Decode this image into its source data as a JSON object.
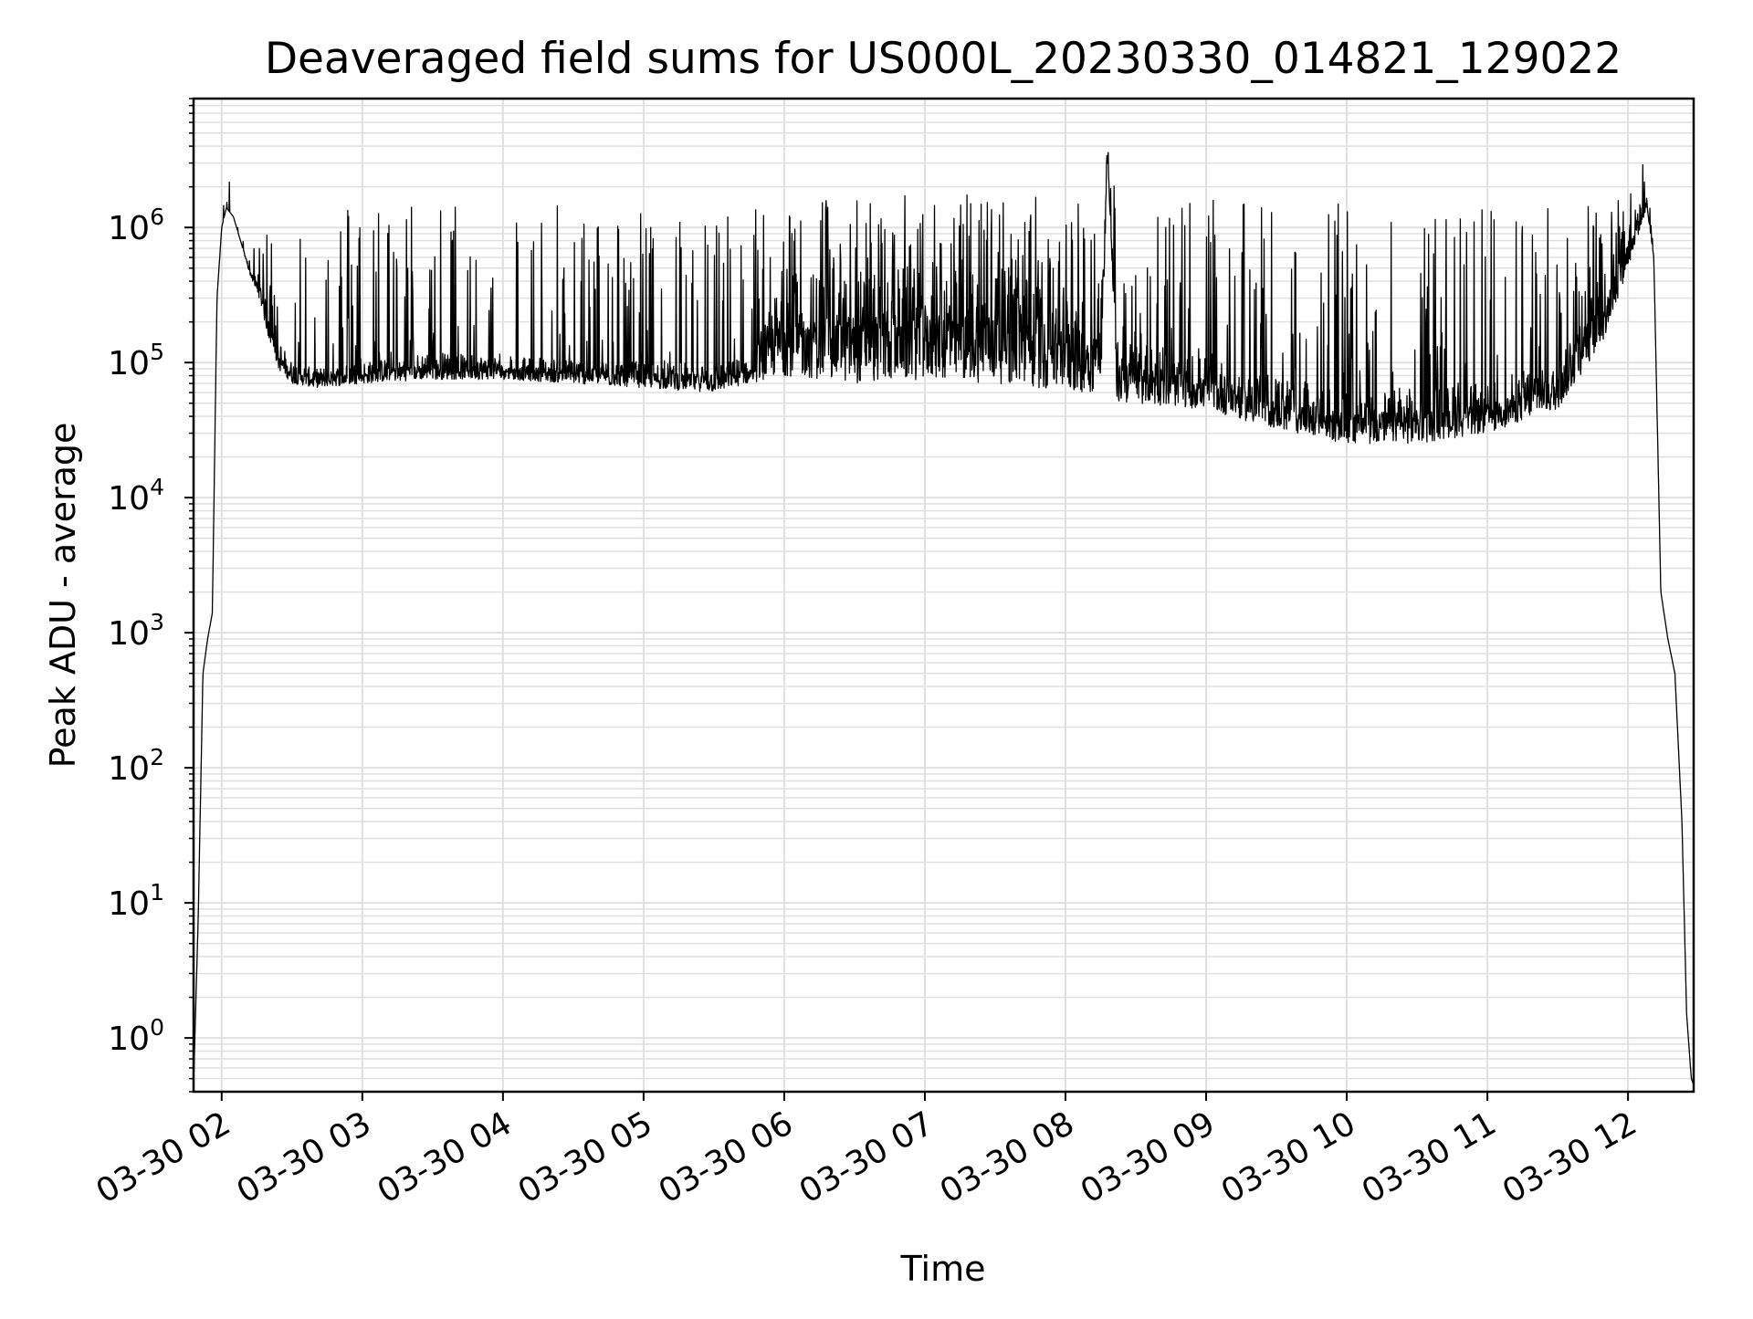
{
  "chart_data": {
    "type": "line",
    "title": "Deaveraged field sums for US000L_20230330_014821_129022",
    "xlabel": "Time",
    "ylabel": "Peak ADU - average",
    "y_scale": "log",
    "ylim": [
      0.4,
      9000000
    ],
    "xlim": [
      "03-30 01:48",
      "03-30 12:28"
    ],
    "x_ticks": [
      "03-30 02",
      "03-30 03",
      "03-30 04",
      "03-30 05",
      "03-30 06",
      "03-30 07",
      "03-30 08",
      "03-30 09",
      "03-30 10",
      "03-30 11",
      "03-30 12"
    ],
    "y_ticks": [
      {
        "base": "10",
        "exp": "0"
      },
      {
        "base": "10",
        "exp": "1"
      },
      {
        "base": "10",
        "exp": "2"
      },
      {
        "base": "10",
        "exp": "3"
      },
      {
        "base": "10",
        "exp": "4"
      },
      {
        "base": "10",
        "exp": "5"
      },
      {
        "base": "10",
        "exp": "6"
      }
    ],
    "grid": true,
    "line_color": "#000000",
    "grid_color": "#e0e0e0",
    "series": [
      {
        "x": [
          "03-30 01:48",
          "03-30 01:50",
          "03-30 01:52",
          "03-30 01:54",
          "03-30 01:56",
          "03-30 01:58",
          "03-30 02:00",
          "03-30 02:02",
          "03-30 02:05",
          "03-30 02:08",
          "03-30 02:12",
          "03-30 02:16",
          "03-30 02:20",
          "03-30 02:24",
          "03-30 02:30",
          "03-30 02:40",
          "03-30 03:00",
          "03-30 03:30",
          "03-30 04:00",
          "03-30 04:30",
          "03-30 05:00",
          "03-30 05:30",
          "03-30 05:45",
          "03-30 06:00",
          "03-30 06:30",
          "03-30 07:00",
          "03-30 07:30",
          "03-30 08:00",
          "03-30 08:15",
          "03-30 08:18",
          "03-30 08:22",
          "03-30 08:30",
          "03-30 09:00",
          "03-30 09:30",
          "03-30 10:00",
          "03-30 10:30",
          "03-30 11:00",
          "03-30 11:30",
          "03-30 11:50",
          "03-30 12:00",
          "03-30 12:08",
          "03-30 12:11",
          "03-30 12:14",
          "03-30 12:17",
          "03-30 12:20",
          "03-30 12:23",
          "03-30 12:25",
          "03-30 12:27",
          "03-30 12:28"
        ],
        "y": [
          0.45,
          8,
          500,
          900,
          1400,
          300000,
          1000000,
          1400000,
          1200000,
          800000,
          500000,
          400000,
          250000,
          150000,
          100000,
          90000,
          100000,
          120000,
          110000,
          105000,
          100000,
          100000,
          110000,
          450000,
          500000,
          520000,
          500000,
          400000,
          380000,
          3500000,
          150000,
          140000,
          110000,
          80000,
          60000,
          65000,
          70000,
          110000,
          500000,
          1200000,
          1700000,
          600000,
          2000,
          900,
          500,
          40,
          1.5,
          0.5,
          0.45
        ],
        "band_low": [
          0.45,
          8,
          500,
          900,
          1400,
          300000,
          1000000,
          1400000,
          1200000,
          800000,
          450000,
          300000,
          150000,
          90000,
          70000,
          65000,
          70000,
          75000,
          75000,
          70000,
          65000,
          60000,
          70000,
          80000,
          70000,
          75000,
          70000,
          60000,
          60000,
          3500000,
          50000,
          50000,
          45000,
          32000,
          25000,
          25000,
          30000,
          45000,
          150000,
          500000,
          1400000,
          600000,
          2000,
          900,
          500,
          40,
          1.5,
          0.5,
          0.45
        ],
        "band_high": [
          0.45,
          8,
          500,
          900,
          1400,
          300000,
          1200000,
          3200000,
          1500000,
          900000,
          700000,
          700000,
          1200000,
          1500000,
          1500000,
          1500000,
          1800000,
          1700000,
          1500000,
          1500000,
          1400000,
          1500000,
          1600000,
          1700000,
          1700000,
          1800000,
          1800000,
          1700000,
          1700000,
          4300000,
          1800000,
          1700000,
          1600000,
          1500000,
          1500000,
          1300000,
          1500000,
          1500000,
          1700000,
          2000000,
          3500000,
          600000,
          2000,
          900,
          500,
          40,
          1.5,
          0.5,
          0.45
        ]
      }
    ]
  }
}
